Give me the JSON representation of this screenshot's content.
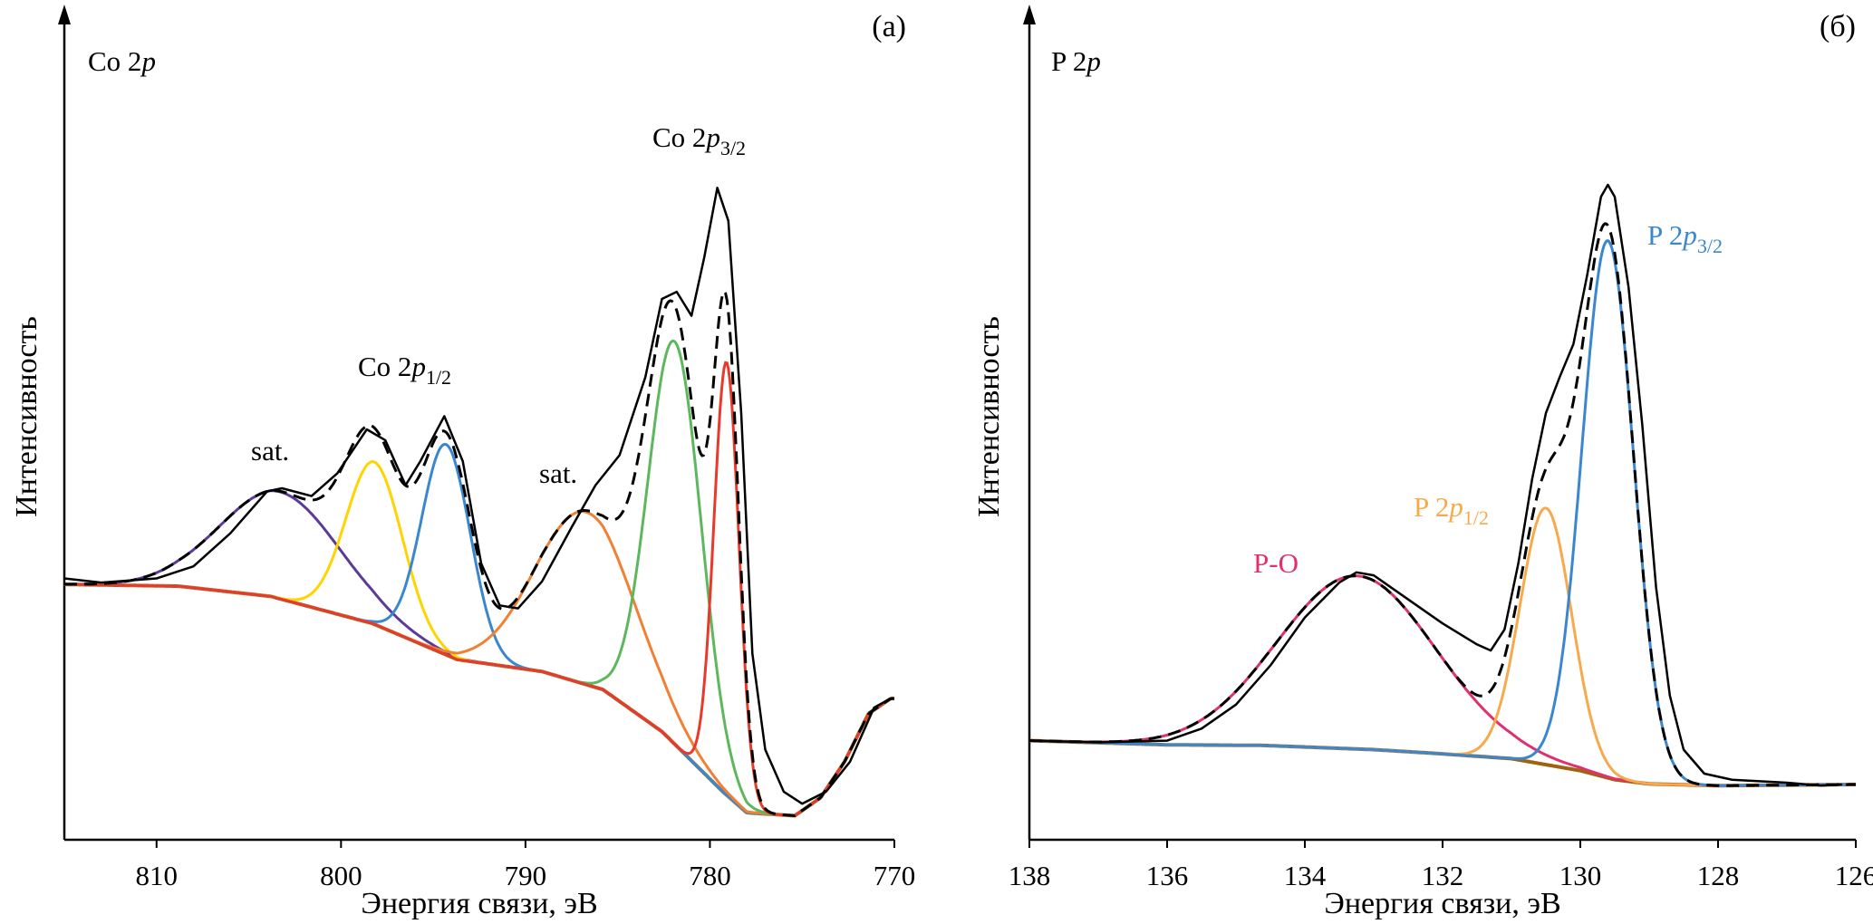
{
  "chart_data": [
    {
      "type": "line",
      "panel_label": "(a)",
      "title": {
        "prefix": "Co 2",
        "italic": "p"
      },
      "xlabel": "Энергия связи, эВ",
      "ylabel": "Интенсивность",
      "xlim": [
        815,
        770
      ],
      "x_reversed": true,
      "ylim": [
        0,
        139
      ],
      "y_units": "arbitrary",
      "xticks": [
        810,
        800,
        790,
        780,
        770
      ],
      "background": {
        "color": "#a0620e",
        "points": [
          [
            815,
            42.5
          ],
          [
            808.8,
            42.2
          ],
          [
            803.8,
            40.5
          ],
          [
            798.3,
            36
          ],
          [
            793.7,
            30
          ],
          [
            789.1,
            28
          ],
          [
            785.8,
            25
          ],
          [
            782.6,
            18
          ],
          [
            779.3,
            8
          ],
          [
            778,
            4.5
          ],
          [
            775.4,
            4
          ],
          [
            774,
            7
          ],
          [
            772.7,
            13
          ],
          [
            771.4,
            21
          ],
          [
            770.2,
            23.5
          ]
        ]
      },
      "components": [
        {
          "center": 803.3,
          "height": 17.8,
          "fwhm": 7.7,
          "color": "#5b3a9a"
        },
        {
          "center": 798.2,
          "height": 27,
          "fwhm": 3.6,
          "color": "#ffd400"
        },
        {
          "center": 794.3,
          "height": 35,
          "fwhm": 3.1,
          "color": "#3a87cf"
        },
        {
          "center": 786.7,
          "height": 28.7,
          "fwhm": 6.4,
          "color": "#f28033"
        },
        {
          "center": 781.9,
          "height": 67,
          "fwhm": 3.4,
          "color": "#5cb85c"
        },
        {
          "center": 779.1,
          "height": 72,
          "fwhm": 1.6,
          "color": "#e8392a"
        }
      ],
      "experimental": [
        [
          815,
          43.5
        ],
        [
          813,
          42.8
        ],
        [
          810,
          43.5
        ],
        [
          808,
          45.5
        ],
        [
          806,
          51
        ],
        [
          804,
          58
        ],
        [
          803.2,
          58.5
        ],
        [
          801.6,
          57.2
        ],
        [
          800.2,
          61
        ],
        [
          798.6,
          68.3
        ],
        [
          797.6,
          66.5
        ],
        [
          796.5,
          59
        ],
        [
          795.7,
          63
        ],
        [
          794.4,
          70.5
        ],
        [
          793.4,
          63
        ],
        [
          792.4,
          46
        ],
        [
          791.4,
          39
        ],
        [
          790.4,
          38.5
        ],
        [
          789.1,
          43
        ],
        [
          787.5,
          52
        ],
        [
          786.2,
          59
        ],
        [
          784.9,
          64
        ],
        [
          783.5,
          77
        ],
        [
          782.6,
          90
        ],
        [
          781.8,
          91.2
        ],
        [
          781,
          87.2
        ],
        [
          780.3,
          97
        ],
        [
          779.6,
          108.5
        ],
        [
          779,
          103
        ],
        [
          778.3,
          71
        ],
        [
          777.7,
          31
        ],
        [
          777,
          15
        ],
        [
          776,
          8
        ],
        [
          775,
          6
        ],
        [
          773.7,
          8
        ],
        [
          772.4,
          13
        ],
        [
          771.1,
          22
        ],
        [
          770.2,
          23.5
        ]
      ],
      "annotations": [
        {
          "prefix": "sat.",
          "italic": "",
          "sub": "",
          "color": "#000000"
        },
        {
          "prefix": "Co 2",
          "italic": "p",
          "sub": "1/2",
          "color": "#000000"
        },
        {
          "prefix": "sat.",
          "italic": "",
          "sub": "",
          "color": "#000000"
        },
        {
          "prefix": "Co 2",
          "italic": "p",
          "sub": "3/2",
          "color": "#000000"
        }
      ]
    },
    {
      "type": "line",
      "panel_label": "(б)",
      "title": {
        "prefix": "P 2",
        "italic": "p"
      },
      "xlabel": "Энергия связи, эВ",
      "ylabel": "Интенсивность",
      "xlim": [
        138,
        126
      ],
      "x_reversed": true,
      "ylim": [
        0,
        139
      ],
      "y_units": "arbitrary",
      "xticks": [
        138,
        136,
        134,
        132,
        130,
        128,
        126
      ],
      "background": {
        "color": "#a0620e",
        "points": [
          [
            138,
            16.5
          ],
          [
            136,
            15.8
          ],
          [
            134.6,
            15.7
          ],
          [
            133,
            15
          ],
          [
            132,
            14.3
          ],
          [
            131,
            13.5
          ],
          [
            130.5,
            12.5
          ],
          [
            130,
            11.5
          ],
          [
            129.5,
            10
          ],
          [
            129,
            9.3
          ],
          [
            128,
            9
          ],
          [
            126,
            9.2
          ]
        ]
      },
      "components": [
        {
          "center": 133.25,
          "height": 28.8,
          "fwhm": 2.7,
          "color": "#e0306e"
        },
        {
          "center": 130.5,
          "height": 42.7,
          "fwhm": 0.88,
          "color": "#f7a94b"
        },
        {
          "center": 129.6,
          "height": 89.4,
          "fwhm": 0.88,
          "color": "#3a87cf"
        }
      ],
      "experimental": [
        [
          138,
          16.5
        ],
        [
          137,
          16.2
        ],
        [
          136,
          16.5
        ],
        [
          135.5,
          18.5
        ],
        [
          135,
          22.5
        ],
        [
          134.5,
          29
        ],
        [
          134,
          37
        ],
        [
          133.5,
          42.8
        ],
        [
          133.25,
          44.5
        ],
        [
          133,
          44
        ],
        [
          132.5,
          40
        ],
        [
          132,
          36
        ],
        [
          131.5,
          32.5
        ],
        [
          131.3,
          31.5
        ],
        [
          131.1,
          35
        ],
        [
          130.9,
          46
        ],
        [
          130.7,
          60
        ],
        [
          130.5,
          71
        ],
        [
          130.3,
          77
        ],
        [
          130.1,
          82.5
        ],
        [
          129.9,
          94
        ],
        [
          129.7,
          107
        ],
        [
          129.6,
          109
        ],
        [
          129.5,
          107
        ],
        [
          129.3,
          92
        ],
        [
          129.1,
          69
        ],
        [
          128.9,
          42
        ],
        [
          128.7,
          24
        ],
        [
          128.5,
          15
        ],
        [
          128.2,
          11
        ],
        [
          127.8,
          10
        ],
        [
          127,
          9.5
        ],
        [
          126.5,
          9
        ],
        [
          126.2,
          9.2
        ]
      ],
      "annotations": [
        {
          "prefix": "P 2",
          "italic": "p",
          "sub": "3/2",
          "color": "#3a87cf"
        },
        {
          "prefix": "P 2",
          "italic": "p",
          "sub": "1/2",
          "color": "#f7a94b"
        },
        {
          "prefix": "P-O",
          "italic": "",
          "sub": "",
          "color": "#e0306e"
        }
      ]
    }
  ]
}
